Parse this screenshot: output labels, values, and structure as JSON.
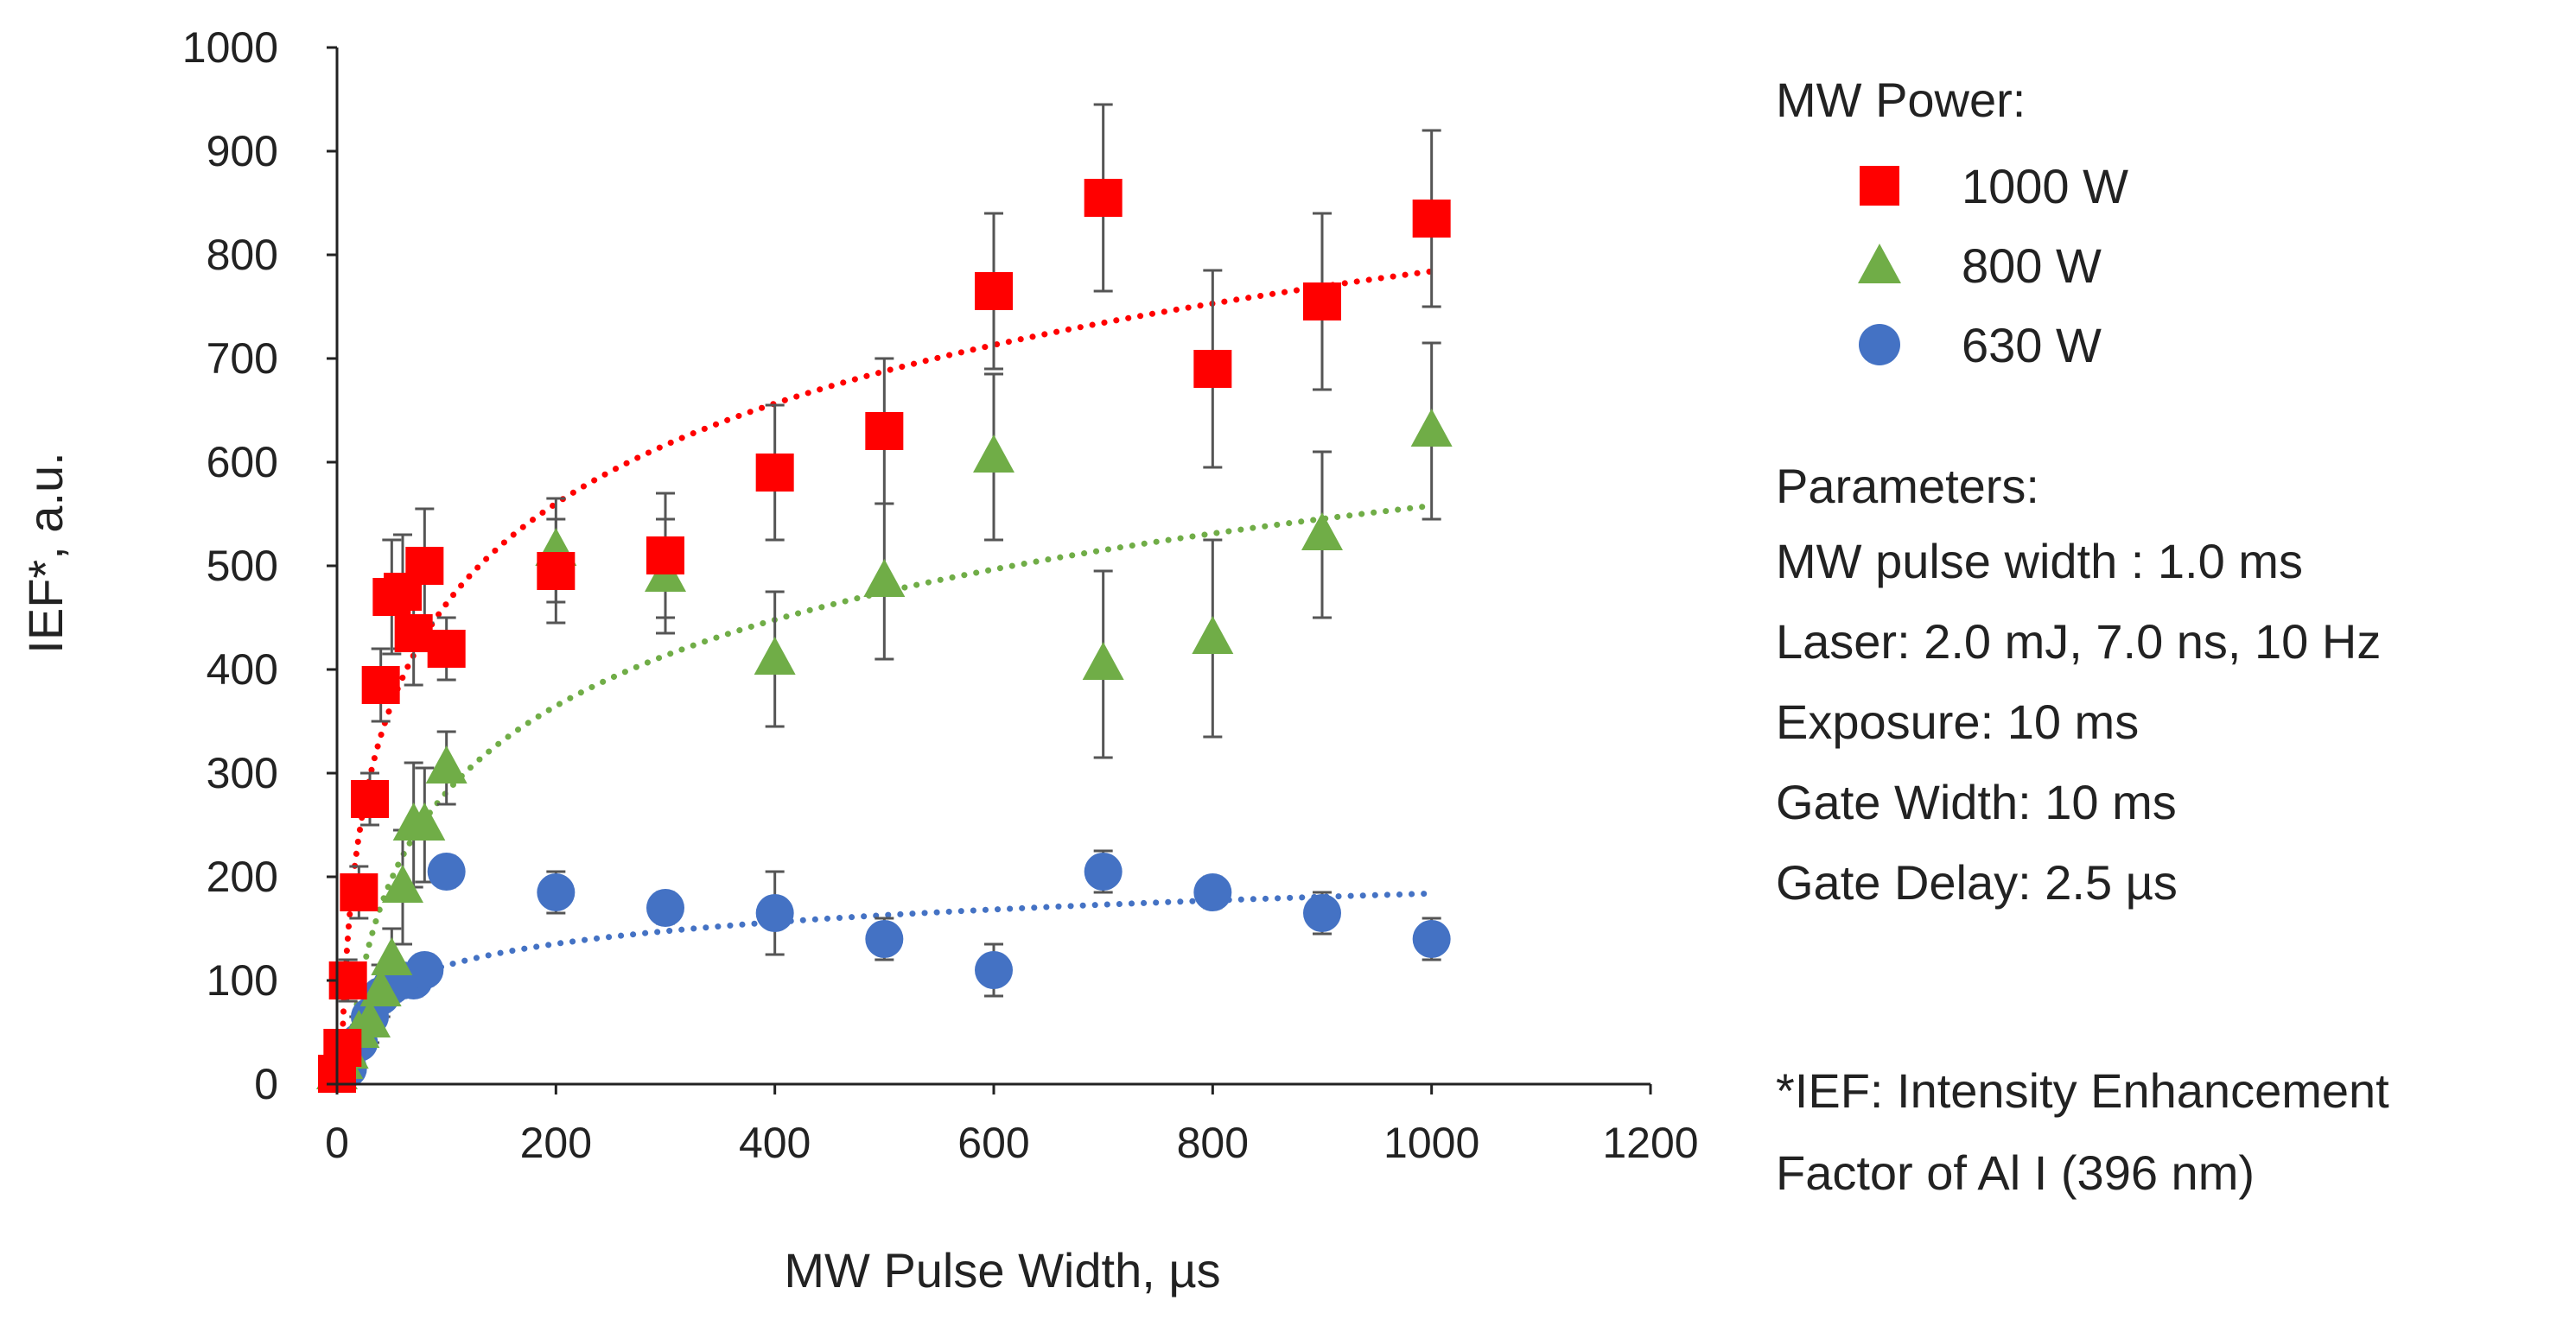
{
  "chart_data": {
    "type": "scatter",
    "title": "",
    "xlabel": "MW Pulse Width, µs",
    "ylabel": "IEF*, a.u.",
    "xlim": [
      0,
      1200
    ],
    "ylim": [
      0,
      1000
    ],
    "xticks": [
      0,
      200,
      400,
      600,
      800,
      1000,
      1200
    ],
    "yticks": [
      0,
      100,
      200,
      300,
      400,
      500,
      600,
      700,
      800,
      900,
      1000
    ],
    "grid": false,
    "legend_title": "MW Power:",
    "legend_position": "right",
    "series": [
      {
        "name": "1000 W",
        "marker": "square",
        "color": "#ff0000",
        "x": [
          0,
          5,
          10,
          20,
          30,
          40,
          50,
          60,
          70,
          80,
          100,
          200,
          300,
          400,
          500,
          600,
          700,
          800,
          900,
          1000
        ],
        "y": [
          10,
          35,
          100,
          185,
          275,
          385,
          470,
          475,
          435,
          500,
          420,
          495,
          510,
          590,
          630,
          765,
          855,
          690,
          755,
          835
        ],
        "error": [
          5,
          10,
          20,
          25,
          25,
          35,
          55,
          55,
          50,
          55,
          30,
          50,
          60,
          65,
          70,
          75,
          90,
          95,
          85,
          85
        ],
        "trend": "logarithmic"
      },
      {
        "name": "800 W",
        "marker": "triangle",
        "color": "#70ad47",
        "x": [
          0,
          5,
          10,
          20,
          30,
          40,
          50,
          60,
          70,
          80,
          100,
          200,
          300,
          400,
          500,
          600,
          700,
          800,
          900,
          1000
        ],
        "y": [
          10,
          20,
          30,
          50,
          60,
          90,
          120,
          190,
          250,
          250,
          305,
          515,
          490,
          410,
          485,
          605,
          405,
          430,
          530,
          630
        ],
        "error": [
          5,
          10,
          10,
          15,
          20,
          25,
          30,
          55,
          60,
          55,
          35,
          50,
          55,
          65,
          75,
          80,
          90,
          95,
          80,
          85
        ],
        "trend": "logarithmic"
      },
      {
        "name": "630 W",
        "marker": "circle",
        "color": "#4472c4",
        "x": [
          0,
          10,
          20,
          30,
          40,
          50,
          60,
          70,
          80,
          100,
          200,
          300,
          400,
          500,
          600,
          700,
          800,
          900,
          1000
        ],
        "y": [
          10,
          15,
          40,
          65,
          85,
          95,
          100,
          100,
          110,
          205,
          185,
          170,
          165,
          140,
          110,
          205,
          185,
          165,
          140
        ],
        "error": [
          3,
          5,
          10,
          10,
          15,
          15,
          15,
          15,
          15,
          15,
          20,
          15,
          40,
          20,
          25,
          20,
          15,
          20,
          20
        ],
        "trend": "logarithmic"
      }
    ],
    "annotations": {
      "parameters_title": "Parameters:",
      "parameters": [
        "MW pulse width : 1.0 ms",
        "Laser: 2.0 mJ, 7.0 ns, 10 Hz",
        "Exposure: 10 ms",
        "Gate Width: 10 ms",
        "Gate Delay: 2.5 µs"
      ],
      "footnote_lines": [
        "*IEF:  Intensity Enhancement",
        "Factor of Al I (396 nm)"
      ]
    }
  }
}
